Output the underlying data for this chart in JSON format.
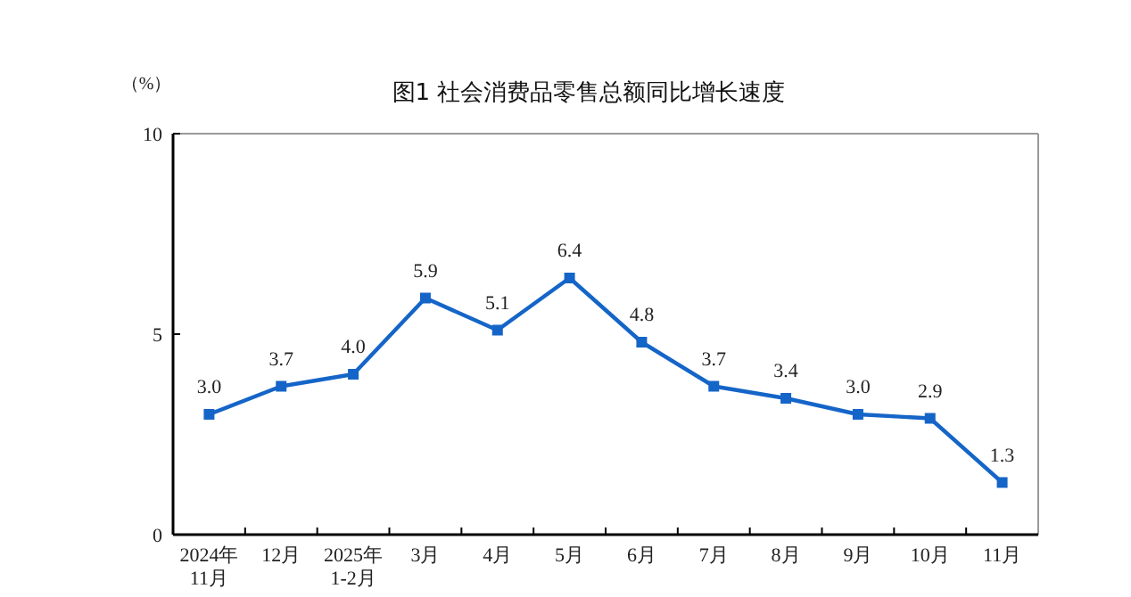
{
  "chart_data": {
    "type": "line",
    "title": "图1  社会消费品零售总额同比增长速度",
    "ylabel": "（%）",
    "categories": [
      "2024年\n11月",
      "12月",
      "2025年\n1-2月",
      "3月",
      "4月",
      "5月",
      "6月",
      "7月",
      "8月",
      "9月",
      "10月",
      "11月"
    ],
    "series": [
      {
        "color": "#1565c8",
        "values": [
          3.0,
          3.7,
          4.0,
          5.9,
          5.1,
          6.4,
          4.8,
          3.7,
          3.4,
          3.0,
          2.9,
          1.3
        ],
        "value_labels": [
          "3.0",
          "3.7",
          "4.0",
          "5.9",
          "5.1",
          "6.4",
          "4.8",
          "3.7",
          "3.4",
          "3.0",
          "2.9",
          "1.3"
        ]
      }
    ],
    "ylim": [
      0,
      10
    ],
    "yticks": [
      0,
      5,
      10
    ],
    "marker": "square",
    "line_style": "solid",
    "grid": false
  }
}
